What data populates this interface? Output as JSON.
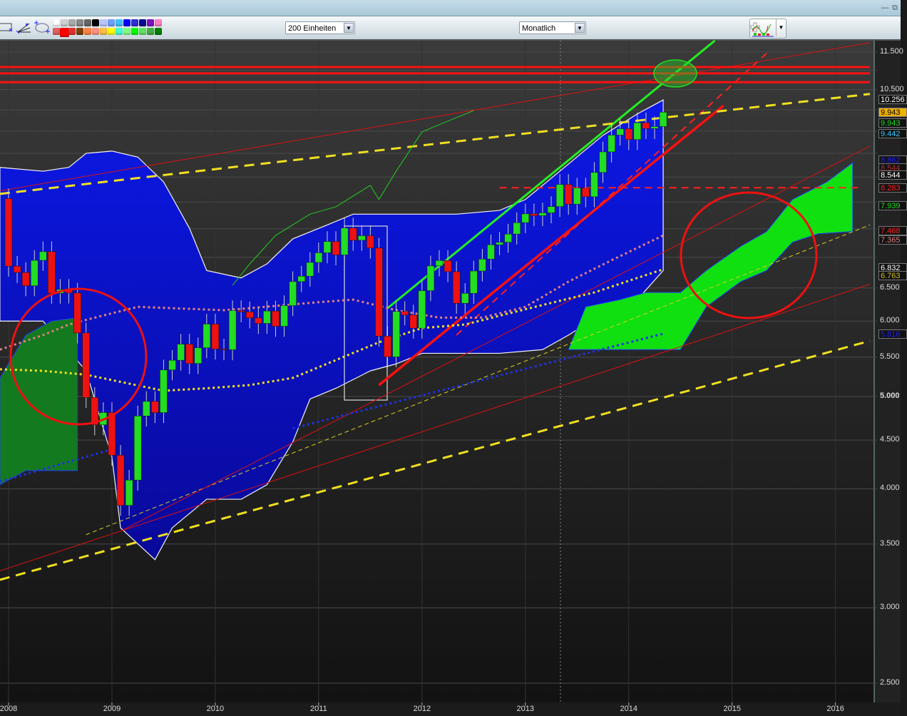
{
  "window": {
    "minimize_icon": "minimize-icon",
    "restore_icon": "restore-icon"
  },
  "toolbar": {
    "tools": [
      "rectangle-tool-icon",
      "trendline-fan-tool-icon",
      "ellipse-tool-icon"
    ],
    "palette_row1": [
      "#ffffff",
      "#d0d0d0",
      "#aaaaaa",
      "#888888",
      "#666666",
      "#000000",
      "#b8c8ff",
      "#70a0ff",
      "#40c0ff",
      "#0000ff",
      "#3030d0",
      "#0a0a90",
      "#8010c0",
      "#ff80c0"
    ],
    "palette_row2": [
      "#e06060",
      "#ff0000",
      "#e03030",
      "#804000",
      "#ff8040",
      "#ff9080",
      "#ffc040",
      "#ffff00",
      "#40ffd0",
      "#80ff80",
      "#00ff00",
      "#60e060",
      "#40b040",
      "#008000"
    ],
    "selected_color": "#ff0000",
    "units_select": "200 Einheiten",
    "interval_select": "Monatlich",
    "indicator_button_icon": "indicator-chart-icon"
  },
  "chart_data": {
    "type": "candlestick",
    "scale": "log",
    "ylim": [
      2.4,
      12.0
    ],
    "xlim": [
      "2007-12",
      "2016-05"
    ],
    "grid": true,
    "y_ticks": [
      "11.500",
      "10.500",
      "6.500",
      "6.000",
      "5.500",
      "5.000",
      "4.500",
      "4.000",
      "3.500",
      "3.000",
      "2.500"
    ],
    "x_ticks": [
      "2008",
      "2009",
      "2010",
      "2011",
      "2012",
      "2013",
      "2014",
      "2015",
      "2016"
    ],
    "first_open": 8.067,
    "start": "2008-01",
    "closes": [
      6.851,
      6.748,
      6.535,
      6.949,
      7.097,
      6.418,
      6.479,
      6.422,
      5.831,
      4.988,
      4.669,
      4.81,
      4.338,
      3.843,
      4.085,
      4.77,
      4.941,
      4.809,
      5.332,
      5.458,
      5.675,
      5.415,
      5.625,
      5.957,
      5.608,
      5.598,
      6.154,
      6.136,
      6.046,
      5.966,
      6.148,
      5.925,
      6.229,
      6.601,
      6.688,
      6.914,
      7.077,
      7.273,
      7.041,
      7.514,
      7.294,
      7.376,
      7.159,
      5.785,
      5.502,
      6.141,
      6.089,
      5.898,
      6.458,
      6.856,
      6.947,
      6.761,
      6.264,
      6.416,
      6.772,
      6.97,
      7.216,
      7.26,
      7.405,
      7.612,
      7.776,
      7.741,
      7.795,
      7.914,
      8.349,
      7.959,
      8.276,
      8.103,
      8.594,
      9.033,
      9.406,
      9.552,
      9.306,
      9.692,
      9.556,
      9.603,
      9.943
    ],
    "colors": {
      "up": "#22dd22",
      "down": "#ee1111"
    },
    "band": {
      "color": "#0a10d8",
      "upper": [
        [
          "2007-12",
          8.7
        ],
        [
          "2008-05",
          8.62
        ],
        [
          "2008-08",
          8.7
        ],
        [
          "2008-10",
          9.0
        ],
        [
          "2009-01",
          9.05
        ],
        [
          "2009-04",
          8.92
        ],
        [
          "2009-07",
          8.4
        ],
        [
          "2009-10",
          7.51
        ],
        [
          "2009-12",
          6.78
        ],
        [
          "2010-04",
          6.66
        ],
        [
          "2010-07",
          6.89
        ],
        [
          "2010-10",
          7.32
        ],
        [
          "2011-02",
          7.57
        ],
        [
          "2011-05",
          7.77
        ],
        [
          "2011-08",
          7.77
        ],
        [
          "2011-12",
          7.77
        ],
        [
          "2012-05",
          7.77
        ],
        [
          "2012-10",
          7.84
        ],
        [
          "2013-01",
          8.05
        ],
        [
          "2013-06",
          8.77
        ],
        [
          "2013-10",
          9.4
        ],
        [
          "2014-02",
          9.9
        ],
        [
          "2014-05",
          10.24
        ]
      ],
      "lower": [
        [
          "2007-12",
          6.0
        ],
        [
          "2008-05",
          6.0
        ],
        [
          "2008-10",
          5.32
        ],
        [
          "2009-01",
          4.32
        ],
        [
          "2009-02",
          3.64
        ],
        [
          "2009-06",
          3.37
        ],
        [
          "2009-08",
          3.64
        ],
        [
          "2009-12",
          3.9
        ],
        [
          "2010-04",
          3.9
        ],
        [
          "2010-07",
          4.04
        ],
        [
          "2010-10",
          4.48
        ],
        [
          "2010-12",
          4.97
        ],
        [
          "2011-03",
          5.1
        ],
        [
          "2011-07",
          5.32
        ],
        [
          "2011-10",
          5.41
        ],
        [
          "2012-01",
          5.55
        ],
        [
          "2012-10",
          5.55
        ],
        [
          "2013-03",
          5.6
        ],
        [
          "2013-06",
          5.8
        ],
        [
          "2013-10",
          6.11
        ],
        [
          "2014-02",
          6.32
        ],
        [
          "2014-05",
          6.78
        ]
      ]
    },
    "clouds": [
      {
        "color": "#10e010",
        "upper": [
          [
            "2013-06",
            5.6
          ],
          [
            "2013-08",
            6.21
          ],
          [
            "2013-12",
            6.32
          ],
          [
            "2014-03",
            6.43
          ],
          [
            "2014-07",
            6.43
          ],
          [
            "2014-10",
            6.78
          ],
          [
            "2015-02",
            7.19
          ],
          [
            "2015-05",
            7.45
          ],
          [
            "2015-08",
            8.05
          ],
          [
            "2015-12",
            8.4
          ],
          [
            "2016-03",
            8.8
          ]
        ],
        "lower": [
          [
            "2013-07",
            5.6
          ],
          [
            "2014-07",
            5.6
          ],
          [
            "2014-10",
            6.21
          ],
          [
            "2015-02",
            6.6
          ],
          [
            "2015-05",
            6.78
          ],
          [
            "2015-08",
            7.26
          ],
          [
            "2015-11",
            7.41
          ],
          [
            "2016-03",
            7.45
          ]
        ]
      },
      {
        "color": "#137a20",
        "upper": [
          [
            "2007-12",
            5.23
          ],
          [
            "2008-03",
            5.8
          ],
          [
            "2008-06",
            6.0
          ],
          [
            "2008-09",
            6.05
          ]
        ],
        "lower": [
          [
            "2007-12",
            4.04
          ],
          [
            "2008-03",
            4.18
          ],
          [
            "2008-09",
            4.18
          ]
        ]
      }
    ],
    "lines": [
      {
        "color": "#22ee22",
        "width": 3,
        "dash": "",
        "points": [
          [
            "2011-09",
            6.19
          ],
          [
            "2014-11",
            11.82
          ]
        ]
      },
      {
        "color": "#ff1010",
        "width": 3.5,
        "dash": "",
        "points": [
          [
            "2011-08",
            5.14
          ],
          [
            "2014-12",
            10.1
          ]
        ]
      },
      {
        "color": "#ff2020",
        "width": 2,
        "dash": "10 7",
        "points": [
          [
            "2012-05",
            5.8
          ],
          [
            "2015-05",
            11.46
          ]
        ]
      },
      {
        "color": "#f0e020",
        "width": 3,
        "dash": "14 9",
        "points": [
          [
            "2007-12",
            3.21
          ],
          [
            "2016-05",
            5.72
          ]
        ]
      },
      {
        "color": "#f0e020",
        "width": 3,
        "dash": "14 9",
        "points": [
          [
            "2007-12",
            8.16
          ],
          [
            "2016-05",
            10.39
          ]
        ]
      },
      {
        "color": "#d8d020",
        "width": 1,
        "dash": "6 4",
        "points": [
          [
            "2008-10",
            3.58
          ],
          [
            "2016-05",
            7.57
          ]
        ]
      },
      {
        "color": "#dd1010",
        "width": 1,
        "dash": "",
        "points": [
          [
            "2007-12",
            3.28
          ],
          [
            "2016-05",
            6.56
          ]
        ]
      },
      {
        "color": "#dd1010",
        "width": 1,
        "dash": "",
        "points": [
          [
            "2007-12",
            8.22
          ],
          [
            "2016-05",
            11.76
          ]
        ]
      },
      {
        "color": "#dd1010",
        "width": 1,
        "dash": "",
        "points": [
          [
            "2009-02",
            3.61
          ],
          [
            "2016-05",
            9.16
          ]
        ]
      },
      {
        "color": "#ff1010",
        "width": 3,
        "dash": "",
        "points": [
          [
            "2007-12",
            11.09
          ],
          [
            "2016-05",
            11.09
          ]
        ]
      },
      {
        "color": "#ff1010",
        "width": 3,
        "dash": "",
        "points": [
          [
            "2007-12",
            10.92
          ],
          [
            "2016-05",
            10.92
          ]
        ]
      },
      {
        "color": "#ff1010",
        "width": 3,
        "dash": "",
        "points": [
          [
            "2007-12",
            10.69
          ],
          [
            "2016-05",
            10.69
          ]
        ]
      },
      {
        "color": "#ff2020",
        "width": 2,
        "dash": "10 7",
        "points": [
          [
            "2012-10",
            8.283
          ],
          [
            "2016-04",
            8.283
          ]
        ]
      },
      {
        "color": "#f0e020",
        "width": 3,
        "dash": "3 4",
        "points": [
          [
            "2007-12",
            5.34
          ],
          [
            "2008-05",
            5.32
          ],
          [
            "2008-10",
            5.27
          ],
          [
            "2009-02",
            5.18
          ],
          [
            "2009-07",
            5.07
          ],
          [
            "2009-12",
            5.1
          ],
          [
            "2010-05",
            5.14
          ],
          [
            "2010-10",
            5.23
          ],
          [
            "2011-03",
            5.46
          ],
          [
            "2011-08",
            5.7
          ],
          [
            "2012-01",
            5.9
          ],
          [
            "2012-06",
            5.95
          ],
          [
            "2012-11",
            6.11
          ],
          [
            "2013-04",
            6.27
          ],
          [
            "2013-09",
            6.43
          ],
          [
            "2014-02",
            6.66
          ],
          [
            "2014-05",
            6.8
          ]
        ]
      },
      {
        "color": "#e08080",
        "width": 3,
        "dash": "3 4",
        "points": [
          [
            "2007-12",
            5.6
          ],
          [
            "2008-05",
            5.8
          ],
          [
            "2008-08",
            5.95
          ],
          [
            "2008-11",
            6.05
          ],
          [
            "2009-04",
            6.21
          ],
          [
            "2010-02",
            6.16
          ],
          [
            "2010-05",
            6.19
          ],
          [
            "2010-12",
            6.27
          ],
          [
            "2011-05",
            6.32
          ],
          [
            "2011-10",
            6.16
          ],
          [
            "2012-03",
            6.05
          ],
          [
            "2012-08",
            6.05
          ],
          [
            "2013-01",
            6.21
          ],
          [
            "2013-06",
            6.6
          ],
          [
            "2013-11",
            6.95
          ],
          [
            "2014-05",
            7.38
          ]
        ]
      },
      {
        "color": "#2030e0",
        "width": 3,
        "dash": "3 4",
        "points": [
          [
            "2007-12",
            4.07
          ],
          [
            "2009-01",
            4.4
          ]
        ]
      },
      {
        "color": "#2030e0",
        "width": 3,
        "dash": "3 4",
        "points": [
          [
            "2010-10",
            4.63
          ],
          [
            "2014-05",
            5.82
          ]
        ]
      },
      {
        "color": "#22cc22",
        "width": 1,
        "dash": "",
        "points": [
          [
            "2010-03",
            6.54
          ],
          [
            "2010-05",
            6.89
          ],
          [
            "2010-08",
            7.38
          ],
          [
            "2010-12",
            7.77
          ],
          [
            "2011-03",
            7.91
          ],
          [
            "2011-07",
            8.33
          ],
          [
            "2011-08",
            8.05
          ],
          [
            "2011-10",
            8.62
          ],
          [
            "2012-01",
            9.48
          ],
          [
            "2012-04",
            9.73
          ],
          [
            "2012-07",
            9.98
          ]
        ]
      }
    ],
    "value_labels": [
      {
        "text": "10.256",
        "price": 10.256,
        "fg": "#ffffff",
        "bg": "#111111"
      },
      {
        "text": "9.943",
        "price": 9.7,
        "fg": "#22dd22",
        "bg": "#111111"
      },
      {
        "text": "9.943",
        "price": 9.943,
        "fg": "#000000",
        "bg": "#f0b000"
      },
      {
        "text": "9.442",
        "price": 9.442,
        "fg": "#30c8ff",
        "bg": "#111111"
      },
      {
        "text": "8.862",
        "price": 8.862,
        "fg": "#2020ff",
        "bg": "#111111"
      },
      {
        "text": "8.544",
        "price": 8.7,
        "fg": "#aa3333",
        "bg": "#111111"
      },
      {
        "text": "8.544",
        "price": 8.544,
        "fg": "#ffffff",
        "bg": "#111111"
      },
      {
        "text": "8.283",
        "price": 8.283,
        "fg": "#ff2020",
        "bg": "#111111"
      },
      {
        "text": "7.939",
        "price": 7.939,
        "fg": "#22dd22",
        "bg": "#111111"
      },
      {
        "text": "7.468",
        "price": 7.468,
        "fg": "#ff2020",
        "bg": "#111111"
      },
      {
        "text": "7.365",
        "price": 7.3,
        "fg": "#e08080",
        "bg": "#111111"
      },
      {
        "text": "6.832",
        "price": 6.832,
        "fg": "#ffffff",
        "bg": "#111111"
      },
      {
        "text": "6.763",
        "price": 6.7,
        "fg": "#d0c020",
        "bg": "#111111"
      },
      {
        "text": "5.816",
        "price": 5.816,
        "fg": "#2020ff",
        "bg": "#111111"
      }
    ]
  }
}
